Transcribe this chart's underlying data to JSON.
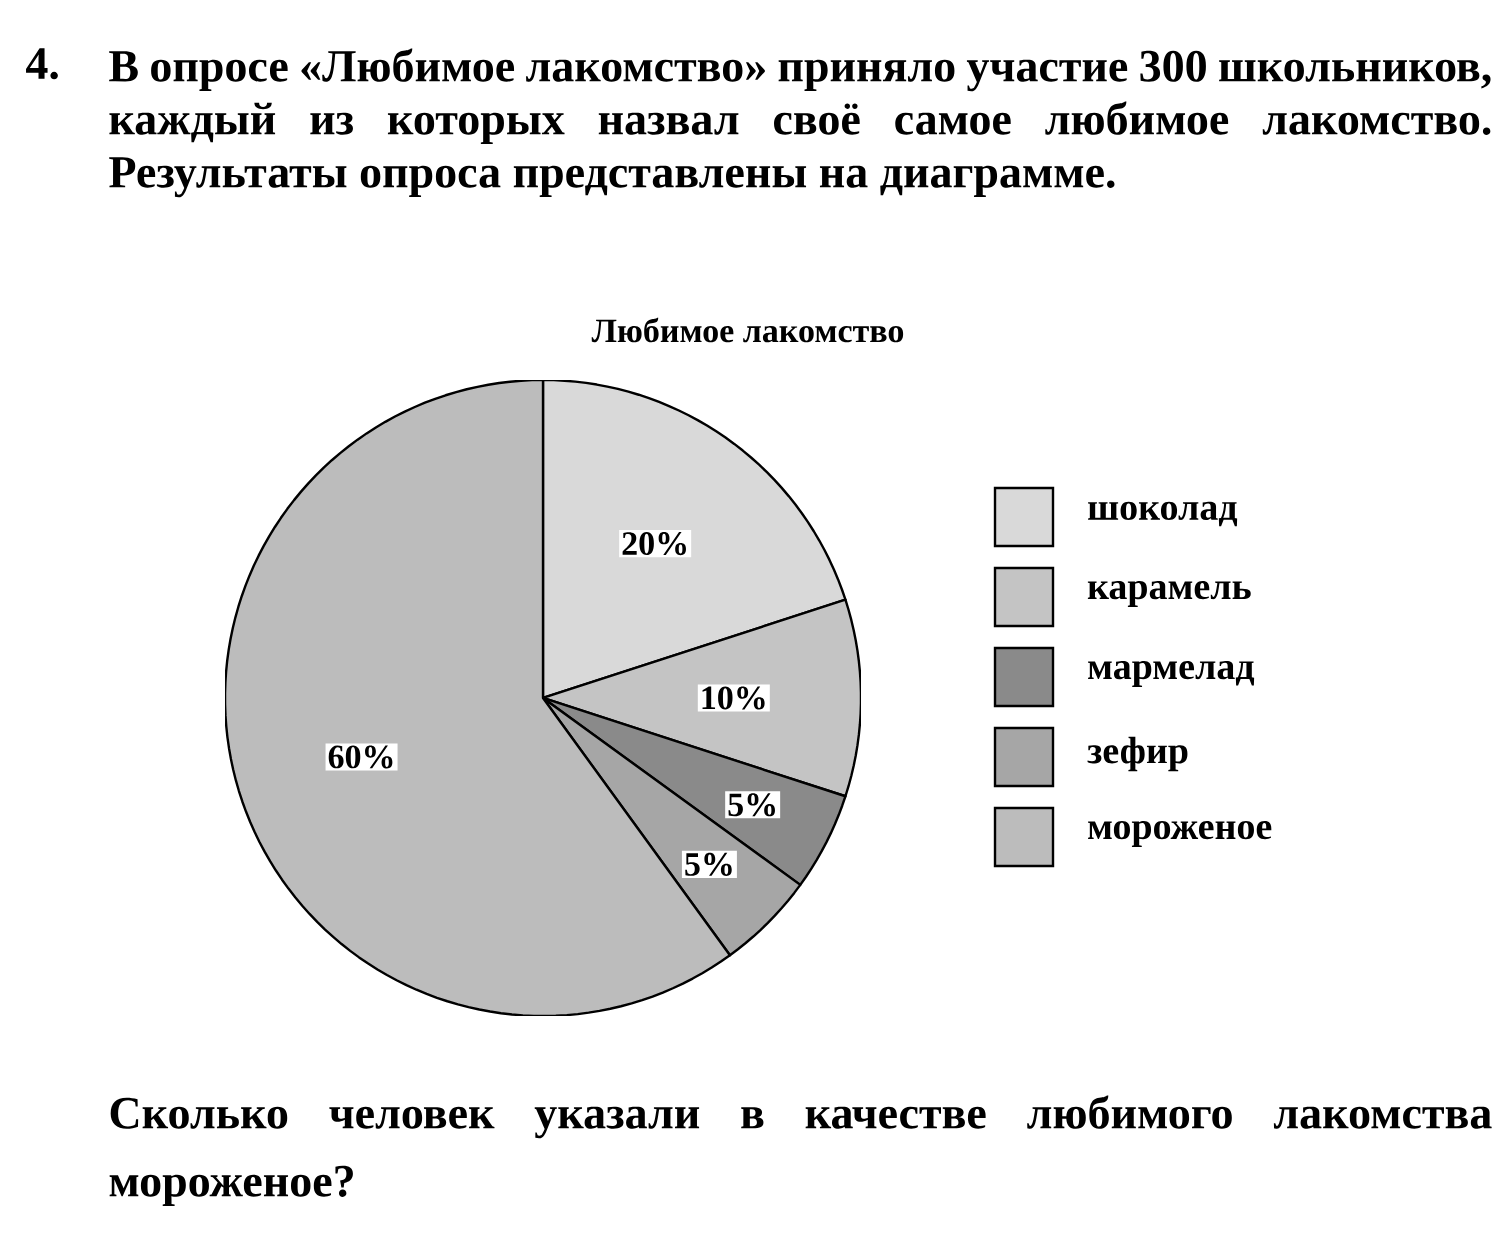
{
  "chart_data": {
    "type": "pie",
    "title": "Любимое лакомство",
    "categories": [
      "шоколад",
      "карамель",
      "мармелад",
      "зефир",
      "мороженое"
    ],
    "values": [
      20,
      10,
      5,
      5,
      60
    ],
    "value_labels": [
      "20%",
      "10%",
      "5%",
      "5%",
      "60%"
    ],
    "colors": [
      "#d9d9d9",
      "#c4c4c4",
      "#8a8a8a",
      "#a6a6a6",
      "#bcbcbc"
    ],
    "legend": "right",
    "annotations": [
      "4.",
      "В опросе «Любимое лакомство» приняло участие 300 школьников, каждый из которых назвал своё самое любимое лакомство. Результаты опроса представлены на диаграмме.",
      "Сколько человек указали в качестве любимого лакомства мороженое?"
    ]
  }
}
